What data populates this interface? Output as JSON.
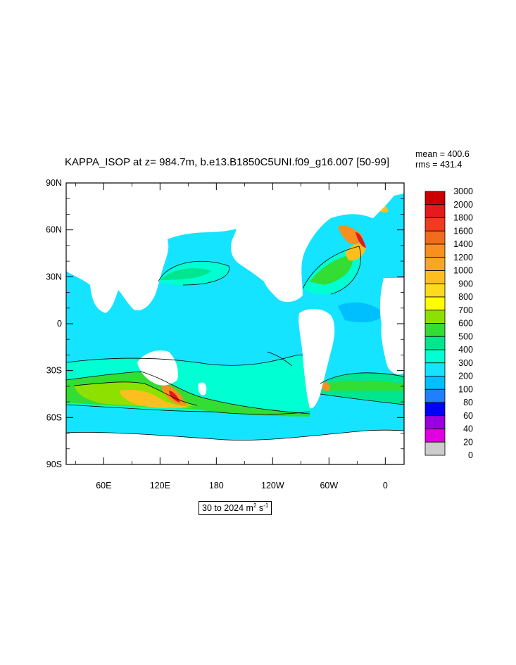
{
  "title": "KAPPA_ISOP at z= 984.7m, b.e13.B1850C5UNI.f09_g16.007 [50-99]",
  "stats": {
    "mean": "mean = 400.6",
    "rms": "rms = 431.4"
  },
  "lat_labels": [
    "90N",
    "60N",
    "30N",
    "0",
    "30S",
    "60S",
    "90S"
  ],
  "lon_labels": [
    "60E",
    "120E",
    "180",
    "120W",
    "60W",
    "0"
  ],
  "range": {
    "text": "30 to 2024 m",
    "unit_sup1": "2",
    "unit_mid": " s",
    "unit_sup2": "-1"
  },
  "colorbar": {
    "levels": [
      "3000",
      "2000",
      "1800",
      "1600",
      "1400",
      "1200",
      "1000",
      "900",
      "800",
      "700",
      "600",
      "500",
      "400",
      "300",
      "200",
      "100",
      "80",
      "60",
      "40",
      "20",
      "0"
    ],
    "colors": [
      "#cc0000",
      "#e41a1c",
      "#f03b20",
      "#f26b1d",
      "#f7901e",
      "#faa526",
      "#fdbf1f",
      "#ffd91e",
      "#ffff00",
      "#8ee000",
      "#33dd33",
      "#00e68f",
      "#00ffd2",
      "#14e4ff",
      "#00bfff",
      "#1e7fff",
      "#0000ff",
      "#9a00e0",
      "#e000e0",
      "#cccccc",
      "#707070"
    ]
  },
  "map_colors": {
    "land": "#ffffff",
    "ocean_base": "#14e4ff",
    "level_300": "#00bfff",
    "level_500": "#00ffd2",
    "level_600": "#00e68f",
    "level_700": "#33dd33",
    "level_800": "#8ee000",
    "level_1000": "#fdbf1f",
    "level_1400": "#f7901e",
    "level_2000": "#e41a1c"
  }
}
